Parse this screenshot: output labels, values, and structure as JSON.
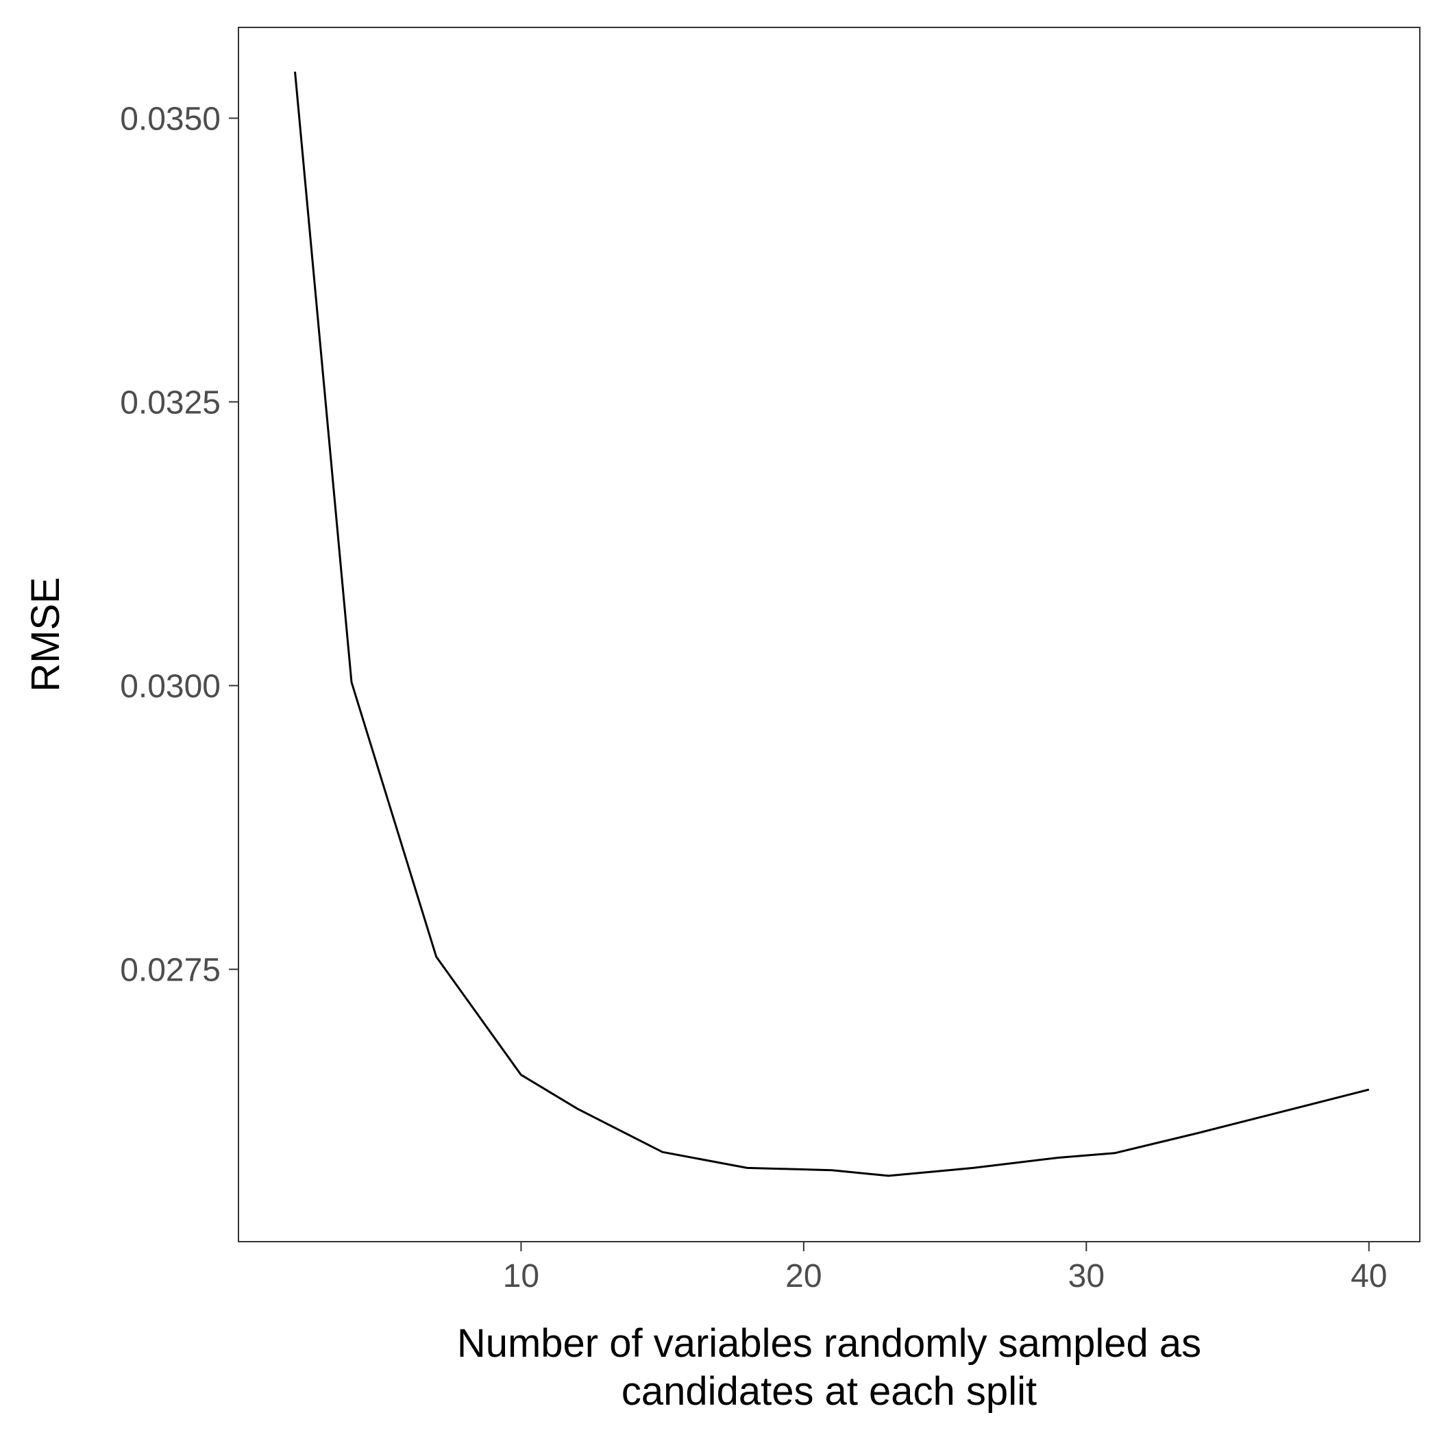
{
  "chart_data": {
    "type": "line",
    "title": "",
    "xlabel_lines": [
      "Number of variables randomly sampled as",
      "candidates at each split"
    ],
    "ylabel": "RMSE",
    "xlim": [
      0,
      41.8
    ],
    "ylim": [
      0.0251,
      0.0358
    ],
    "x_ticks": [
      10,
      20,
      30,
      40
    ],
    "x_tick_labels": [
      "10",
      "20",
      "30",
      "40"
    ],
    "y_ticks": [
      0.0275,
      0.03,
      0.0325,
      0.035
    ],
    "y_tick_labels": [
      "0.0275",
      "0.0300",
      "0.0325",
      "0.0350"
    ],
    "grid": false,
    "series": [
      {
        "color": "#000000",
        "x": [
          2,
          4,
          7,
          10,
          12,
          15,
          18,
          21,
          23,
          26,
          29,
          31,
          34,
          37,
          40
        ],
        "y": [
          0.03541,
          0.03003,
          0.02761,
          0.02657,
          0.02627,
          0.02589,
          0.02575,
          0.02573,
          0.02568,
          0.02575,
          0.02584,
          0.02588,
          0.02606,
          0.02625,
          0.02644
        ]
      }
    ]
  }
}
